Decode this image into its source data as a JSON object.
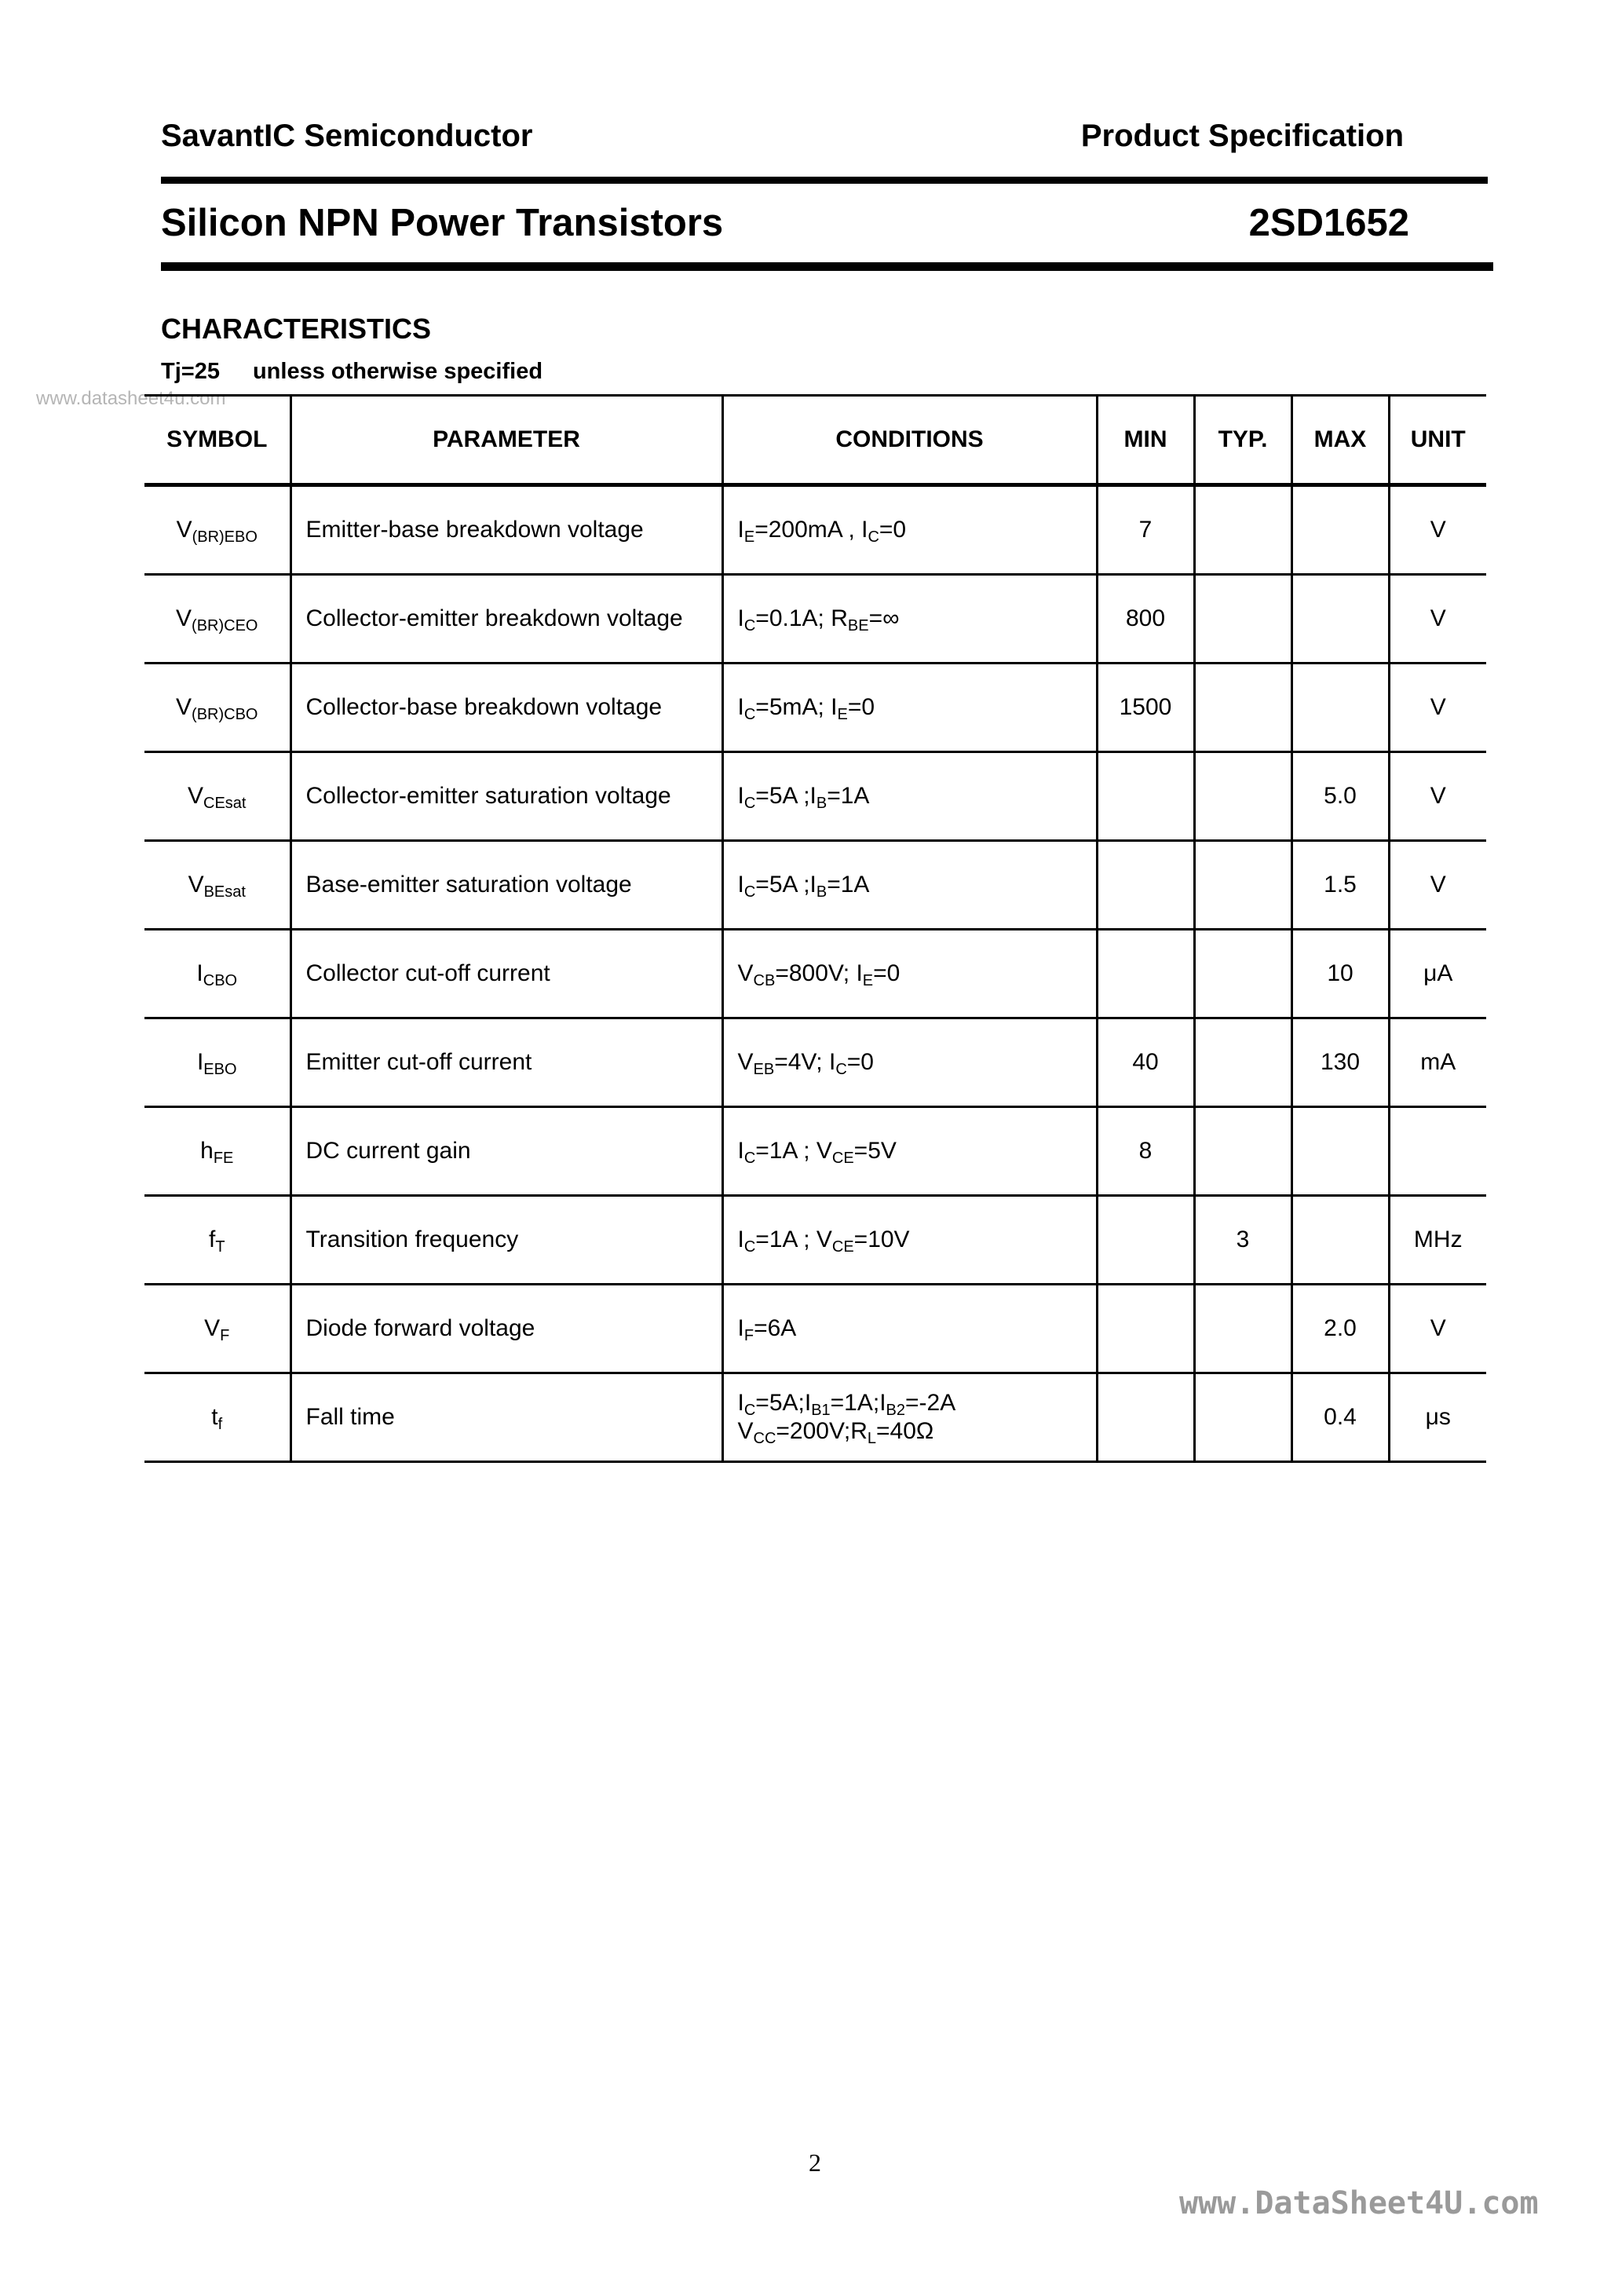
{
  "header": {
    "company": "SavantIC Semiconductor",
    "doc_type": "Product Specification",
    "product_family": "Silicon NPN Power Transistors",
    "part_number": "2SD1652"
  },
  "section": {
    "title": "CHARACTERISTICS",
    "condition_temp": "Tj=25",
    "condition_text": "unless otherwise specified"
  },
  "watermark_top": "www.datasheet4u.com",
  "table": {
    "columns": [
      "SYMBOL",
      "PARAMETER",
      "CONDITIONS",
      "MIN",
      "TYP.",
      "MAX",
      "UNIT"
    ],
    "rows": [
      {
        "symbol": [
          [
            "V",
            "(BR)EBO"
          ]
        ],
        "parameter": "Emitter-base breakdown voltage",
        "conditions": [
          [
            [
              "I",
              "E"
            ],
            [
              "=200mA , I",
              "C"
            ],
            [
              "=0"
            ]
          ]
        ],
        "min": "7",
        "typ": "",
        "max": "",
        "unit": "V"
      },
      {
        "symbol": [
          [
            "V",
            "(BR)CEO"
          ]
        ],
        "parameter": "Collector-emitter breakdown voltage",
        "conditions": [
          [
            [
              "I",
              "C"
            ],
            [
              "=0.1A; R",
              "BE"
            ],
            [
              "=∞"
            ]
          ]
        ],
        "min": "800",
        "typ": "",
        "max": "",
        "unit": "V"
      },
      {
        "symbol": [
          [
            "V",
            "(BR)CBO"
          ]
        ],
        "parameter": "Collector-base breakdown voltage",
        "conditions": [
          [
            [
              "I",
              "C"
            ],
            [
              "=5mA; I",
              "E"
            ],
            [
              "=0"
            ]
          ]
        ],
        "min": "1500",
        "typ": "",
        "max": "",
        "unit": "V"
      },
      {
        "symbol": [
          [
            "V",
            "CEsat"
          ]
        ],
        "parameter": "Collector-emitter saturation voltage",
        "conditions": [
          [
            [
              "I",
              "C"
            ],
            [
              "=5A ;I",
              "B"
            ],
            [
              "=1A"
            ]
          ]
        ],
        "min": "",
        "typ": "",
        "max": "5.0",
        "unit": "V"
      },
      {
        "symbol": [
          [
            "V",
            "BEsat"
          ]
        ],
        "parameter": "Base-emitter saturation voltage",
        "conditions": [
          [
            [
              "I",
              "C"
            ],
            [
              "=5A ;I",
              "B"
            ],
            [
              "=1A"
            ]
          ]
        ],
        "min": "",
        "typ": "",
        "max": "1.5",
        "unit": "V"
      },
      {
        "symbol": [
          [
            "I",
            "CBO"
          ]
        ],
        "parameter": "Collector cut-off current",
        "conditions": [
          [
            [
              "V",
              "CB"
            ],
            [
              "=800V; I",
              "E"
            ],
            [
              "=0"
            ]
          ]
        ],
        "min": "",
        "typ": "",
        "max": "10",
        "unit": "μA"
      },
      {
        "symbol": [
          [
            "I",
            "EBO"
          ]
        ],
        "parameter": "Emitter cut-off current",
        "conditions": [
          [
            [
              "V",
              "EB"
            ],
            [
              "=4V; I",
              "C"
            ],
            [
              "=0"
            ]
          ]
        ],
        "min": "40",
        "typ": "",
        "max": "130",
        "unit": "mA"
      },
      {
        "symbol": [
          [
            "h",
            "FE"
          ]
        ],
        "parameter": "DC current gain",
        "conditions": [
          [
            [
              "I",
              "C"
            ],
            [
              "=1A ; V",
              "CE"
            ],
            [
              "=5V"
            ]
          ]
        ],
        "min": "8",
        "typ": "",
        "max": "",
        "unit": ""
      },
      {
        "symbol": [
          [
            "f",
            "T"
          ]
        ],
        "parameter": "Transition frequency",
        "conditions": [
          [
            [
              "I",
              "C"
            ],
            [
              "=1A ; V",
              "CE"
            ],
            [
              "=10V"
            ]
          ]
        ],
        "min": "",
        "typ": "3",
        "max": "",
        "unit": "MHz"
      },
      {
        "symbol": [
          [
            "V",
            "F"
          ]
        ],
        "parameter": "Diode forward voltage",
        "conditions": [
          [
            [
              "I",
              "F"
            ],
            [
              "=6A"
            ]
          ]
        ],
        "min": "",
        "typ": "",
        "max": "2.0",
        "unit": "V"
      },
      {
        "symbol": [
          [
            "t",
            "f"
          ]
        ],
        "parameter": "Fall time",
        "conditions": [
          [
            [
              "I",
              "C"
            ],
            [
              "=5A;I",
              "B1"
            ],
            [
              "=1A;I",
              "B2"
            ],
            [
              "=-2A"
            ]
          ],
          [
            [
              "V",
              "CC"
            ],
            [
              "=200V;R",
              "L"
            ],
            [
              "=40Ω"
            ]
          ]
        ],
        "min": "",
        "typ": "",
        "max": "0.4",
        "unit": "μs"
      }
    ]
  },
  "page_number": "2",
  "watermark_bottom": "www.DataSheet4U.com"
}
